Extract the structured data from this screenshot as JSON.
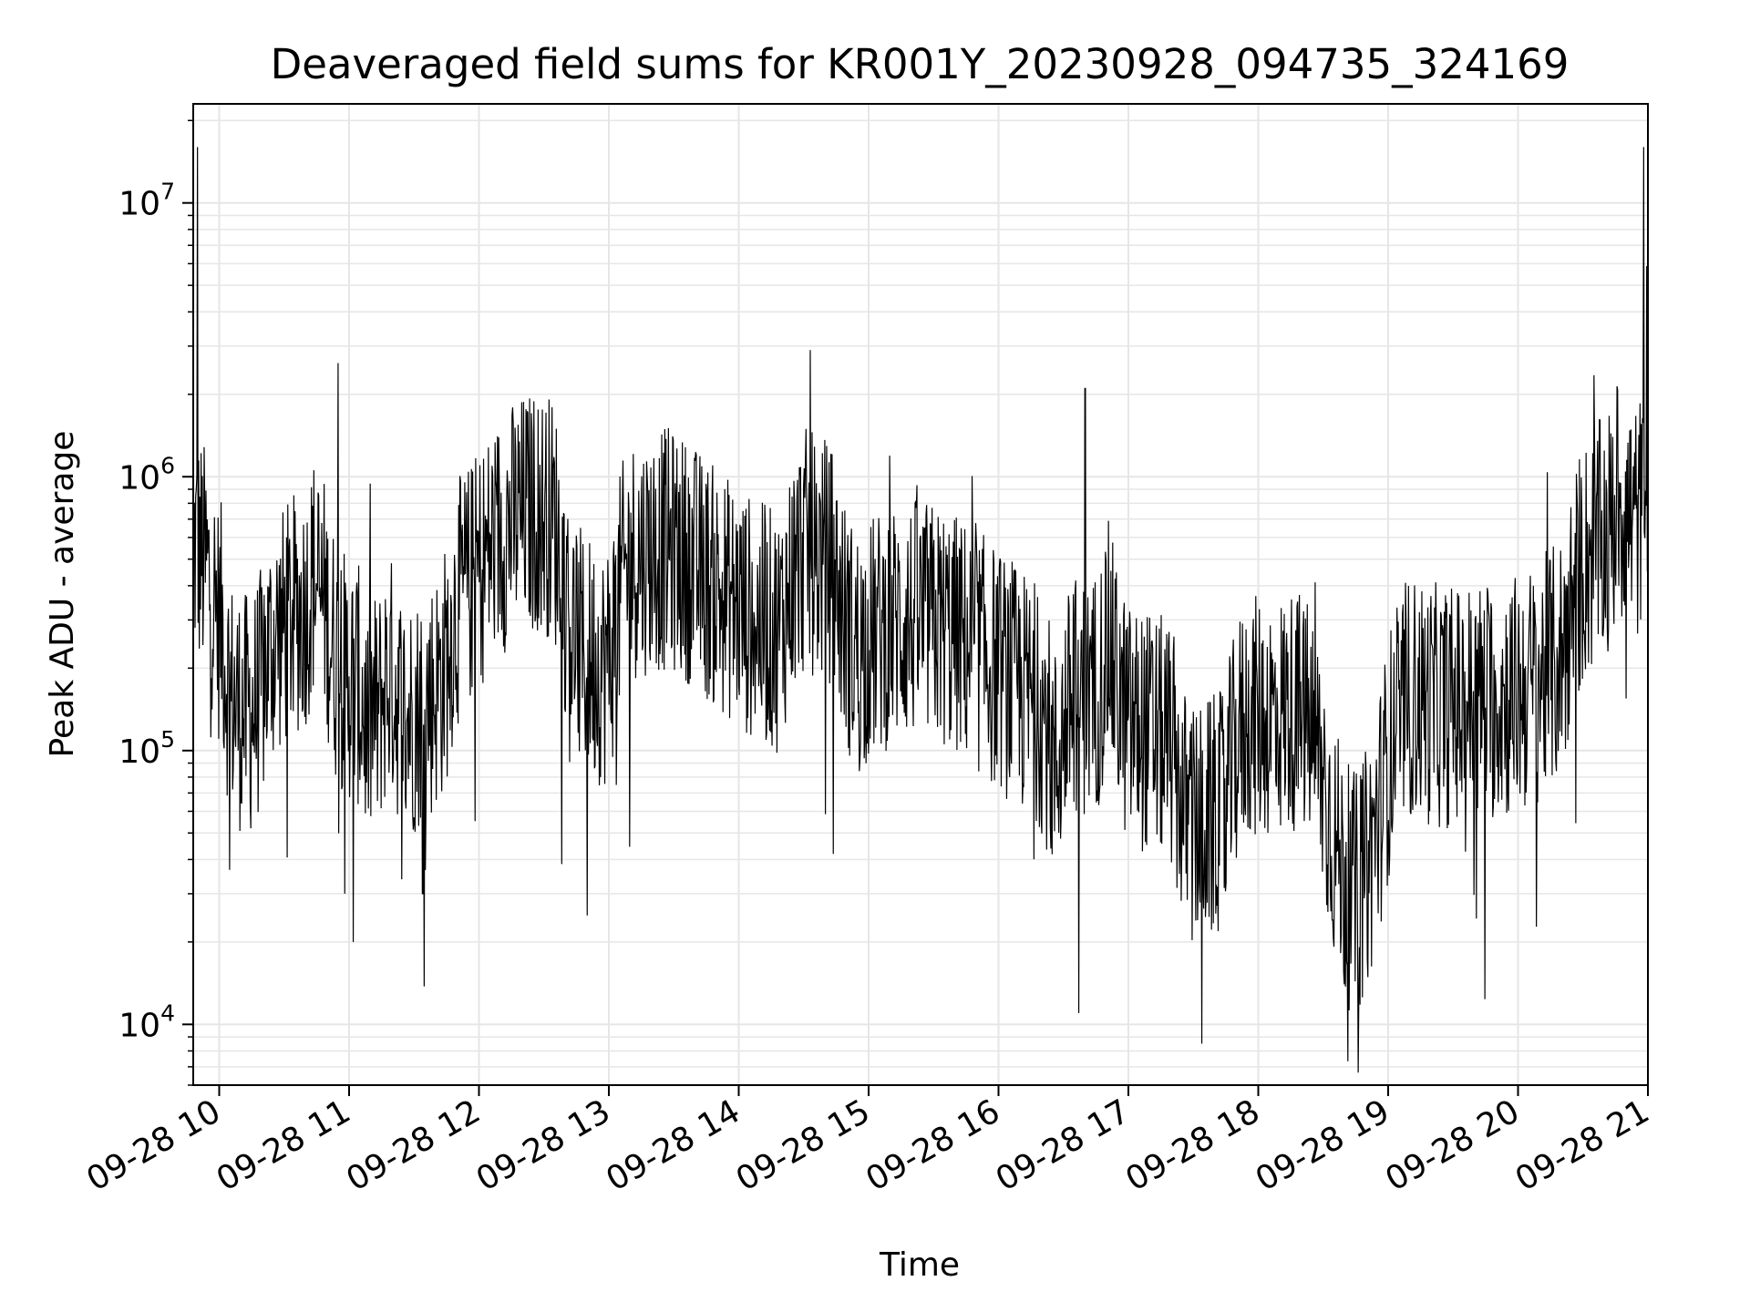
{
  "chart_data": {
    "type": "line",
    "title": "Deaveraged field sums for KR001Y_20230928_094735_324169",
    "xlabel": "Time",
    "ylabel": "Peak ADU - average",
    "y_scale": "log",
    "ylim": [
      6000,
      23000000
    ],
    "xlim": [
      "2023-09-28 09:48",
      "2023-09-28 21:00"
    ],
    "grid": true,
    "line_color": "#000000",
    "grid_color": "#e6e6e6",
    "x_ticks": [
      {
        "value": "2023-09-28 10:00",
        "label": "09-28 10"
      },
      {
        "value": "2023-09-28 11:00",
        "label": "09-28 11"
      },
      {
        "value": "2023-09-28 12:00",
        "label": "09-28 12"
      },
      {
        "value": "2023-09-28 13:00",
        "label": "09-28 13"
      },
      {
        "value": "2023-09-28 14:00",
        "label": "09-28 14"
      },
      {
        "value": "2023-09-28 15:00",
        "label": "09-28 15"
      },
      {
        "value": "2023-09-28 16:00",
        "label": "09-28 16"
      },
      {
        "value": "2023-09-28 17:00",
        "label": "09-28 17"
      },
      {
        "value": "2023-09-28 18:00",
        "label": "09-28 18"
      },
      {
        "value": "2023-09-28 19:00",
        "label": "09-28 19"
      },
      {
        "value": "2023-09-28 20:00",
        "label": "09-28 20"
      },
      {
        "value": "2023-09-28 21:00",
        "label": "09-28 21"
      }
    ],
    "y_ticks": [
      {
        "value": 10000,
        "base": "10",
        "exp": "4"
      },
      {
        "value": 100000,
        "base": "10",
        "exp": "5"
      },
      {
        "value": 1000000,
        "base": "10",
        "exp": "6"
      },
      {
        "value": 10000000,
        "base": "10",
        "exp": "7"
      }
    ],
    "series": [
      {
        "x": [
          "2023-09-28 09:48",
          "2023-09-28 09:50",
          "2023-09-28 09:54",
          "2023-09-28 10:00",
          "2023-09-28 10:10",
          "2023-09-28 10:13",
          "2023-09-28 10:20",
          "2023-09-28 10:30",
          "2023-09-28 10:40",
          "2023-09-28 10:50",
          "2023-09-28 10:55",
          "2023-09-28 10:58",
          "2023-09-28 11:00",
          "2023-09-28 11:02",
          "2023-09-28 11:10",
          "2023-09-28 11:20",
          "2023-09-28 11:30",
          "2023-09-28 11:34",
          "2023-09-28 11:40",
          "2023-09-28 11:50",
          "2023-09-28 12:00",
          "2023-09-28 12:15",
          "2023-09-28 12:30",
          "2023-09-28 12:45",
          "2023-09-28 12:50",
          "2023-09-28 13:00",
          "2023-09-28 13:15",
          "2023-09-28 13:30",
          "2023-09-28 13:45",
          "2023-09-28 14:00",
          "2023-09-28 14:15",
          "2023-09-28 14:30",
          "2023-09-28 14:33",
          "2023-09-28 14:45",
          "2023-09-28 15:00",
          "2023-09-28 15:10",
          "2023-09-28 15:30",
          "2023-09-28 15:45",
          "2023-09-28 16:00",
          "2023-09-28 16:15",
          "2023-09-28 16:30",
          "2023-09-28 16:37",
          "2023-09-28 16:40",
          "2023-09-28 16:50",
          "2023-09-28 17:00",
          "2023-09-28 17:15",
          "2023-09-28 17:30",
          "2023-09-28 17:34",
          "2023-09-28 17:45",
          "2023-09-28 18:00",
          "2023-09-28 18:15",
          "2023-09-28 18:30",
          "2023-09-28 18:45",
          "2023-09-28 19:00",
          "2023-09-28 19:15",
          "2023-09-28 19:30",
          "2023-09-28 19:45",
          "2023-09-28 20:00",
          "2023-09-28 20:15",
          "2023-09-28 20:30",
          "2023-09-28 20:35",
          "2023-09-28 20:45",
          "2023-09-28 20:55",
          "2023-09-28 20:58",
          "2023-09-28 21:00"
        ],
        "y": [
          350000,
          16000000,
          400000,
          300000,
          40000,
          150000,
          200000,
          350000,
          300000,
          350000,
          2600000,
          30000,
          250000,
          20000,
          250000,
          200000,
          150000,
          30000,
          300000,
          300000,
          500000,
          700000,
          800000,
          600000,
          25000,
          500000,
          500000,
          600000,
          400000,
          350000,
          250000,
          300000,
          2900000,
          200000,
          250000,
          300000,
          300000,
          250000,
          200000,
          150000,
          130000,
          11000,
          2100000,
          120000,
          130000,
          110000,
          100000,
          8500,
          150000,
          120000,
          150000,
          130000,
          10000,
          170000,
          150000,
          140000,
          160000,
          150000,
          200000,
          250000,
          2350000,
          350000,
          500000,
          16000000,
          600000
        ]
      }
    ]
  }
}
